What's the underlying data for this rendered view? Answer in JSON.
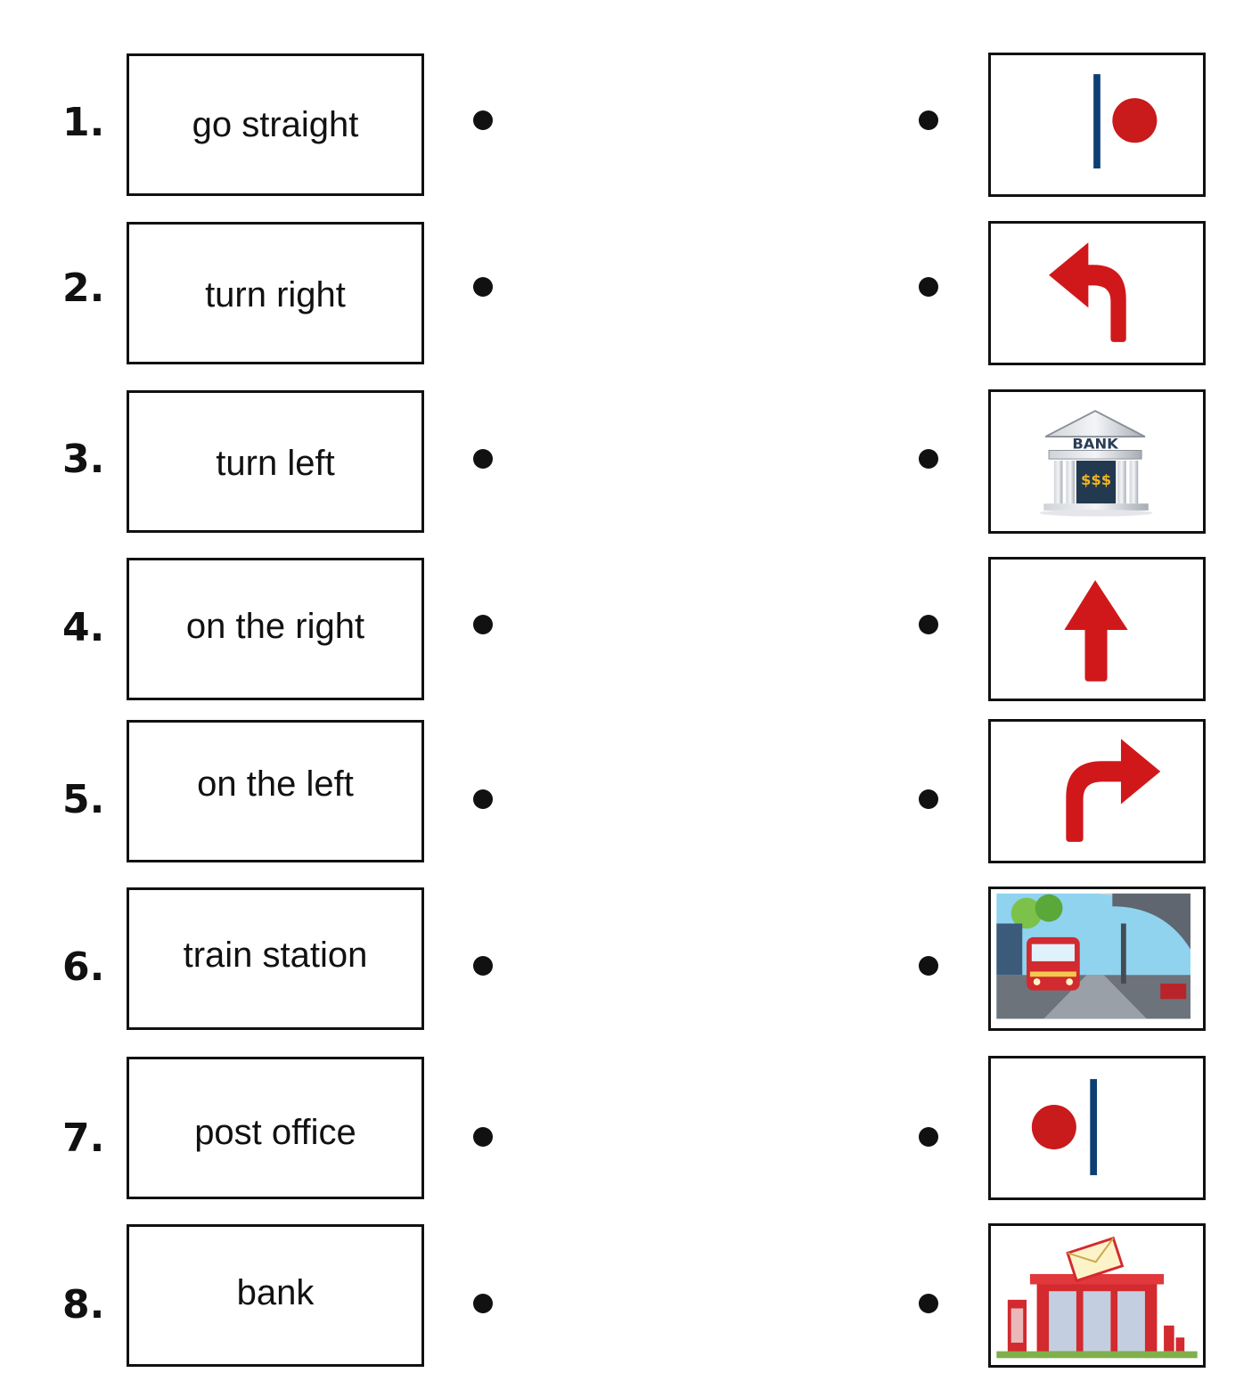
{
  "items": [
    {
      "number": "1.",
      "word": "go straight"
    },
    {
      "number": "2.",
      "word": "turn right"
    },
    {
      "number": "3.",
      "word": "turn left"
    },
    {
      "number": "4.",
      "word": "on the right"
    },
    {
      "number": "5.",
      "word": "on the left"
    },
    {
      "number": "6.",
      "word": "train station"
    },
    {
      "number": "7.",
      "word": "post office"
    },
    {
      "number": "8.",
      "word": "bank"
    }
  ],
  "pictures": [
    {
      "icon": "on-the-right-icon"
    },
    {
      "icon": "turn-left-arrow-icon"
    },
    {
      "icon": "bank-building-icon",
      "sign": "BANK",
      "money": "$$$"
    },
    {
      "icon": "go-straight-arrow-icon"
    },
    {
      "icon": "turn-right-arrow-icon"
    },
    {
      "icon": "train-station-illustration"
    },
    {
      "icon": "on-the-left-icon"
    },
    {
      "icon": "post-office-illustration"
    }
  ],
  "colors": {
    "arrow_red": "#d0181b",
    "line_blue": "#0d3f73",
    "dot_red": "#c91a1c"
  }
}
